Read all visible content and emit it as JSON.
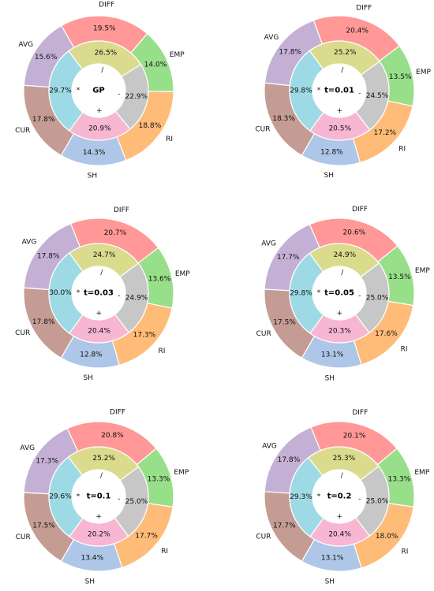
{
  "chart_data": [
    {
      "type": "pie",
      "center_label": "GP",
      "outer": {
        "categories": [
          "CUR",
          "AVG",
          "DIFF",
          "EMP",
          "RI",
          "SH"
        ],
        "values": [
          17.8,
          15.6,
          19.5,
          14.0,
          18.8,
          14.3
        ]
      },
      "inner": {
        "categories": [
          "*",
          "/",
          "-",
          "+"
        ],
        "values": [
          29.7,
          26.5,
          22.9,
          20.9
        ]
      }
    },
    {
      "type": "pie",
      "center_label": "t=0.01",
      "outer": {
        "categories": [
          "CUR",
          "AVG",
          "DIFF",
          "EMP",
          "RI",
          "SH"
        ],
        "values": [
          18.3,
          17.8,
          20.4,
          13.5,
          17.2,
          12.8
        ]
      },
      "inner": {
        "categories": [
          "*",
          "/",
          "-",
          "+"
        ],
        "values": [
          29.8,
          25.2,
          24.5,
          20.5
        ]
      }
    },
    {
      "type": "pie",
      "center_label": "t=0.03",
      "outer": {
        "categories": [
          "CUR",
          "AVG",
          "DIFF",
          "EMP",
          "RI",
          "SH"
        ],
        "values": [
          17.8,
          17.8,
          20.7,
          13.6,
          17.3,
          12.8
        ]
      },
      "inner": {
        "categories": [
          "*",
          "/",
          "-",
          "+"
        ],
        "values": [
          30.0,
          24.7,
          24.9,
          20.4
        ]
      }
    },
    {
      "type": "pie",
      "center_label": "t=0.05",
      "outer": {
        "categories": [
          "CUR",
          "AVG",
          "DIFF",
          "EMP",
          "RI",
          "SH"
        ],
        "values": [
          17.5,
          17.7,
          20.6,
          13.5,
          17.6,
          13.1
        ]
      },
      "inner": {
        "categories": [
          "*",
          "/",
          "-",
          "+"
        ],
        "values": [
          29.8,
          24.9,
          25.0,
          20.3
        ]
      }
    },
    {
      "type": "pie",
      "center_label": "t=0.1",
      "outer": {
        "categories": [
          "CUR",
          "AVG",
          "DIFF",
          "EMP",
          "RI",
          "SH"
        ],
        "values": [
          17.5,
          17.3,
          20.8,
          13.3,
          17.7,
          13.4
        ]
      },
      "inner": {
        "categories": [
          "*",
          "/",
          "-",
          "+"
        ],
        "values": [
          29.6,
          25.2,
          25.0,
          20.2
        ]
      }
    },
    {
      "type": "pie",
      "center_label": "t=0.2",
      "outer": {
        "categories": [
          "CUR",
          "AVG",
          "DIFF",
          "EMP",
          "RI",
          "SH"
        ],
        "values": [
          17.7,
          17.8,
          20.1,
          13.3,
          18.0,
          13.1
        ]
      },
      "inner": {
        "categories": [
          "*",
          "/",
          "-",
          "+"
        ],
        "values": [
          29.3,
          25.3,
          25.0,
          20.4
        ]
      }
    }
  ],
  "colors": {
    "outer": {
      "CUR": "#c49c94",
      "AVG": "#c5b0d5",
      "DIFF": "#ff9896",
      "EMP": "#98df8a",
      "RI": "#ffbb78",
      "SH": "#aec7e8"
    },
    "inner": {
      "*": "#9edae5",
      "/": "#dbdb8d",
      "-": "#c7c7c7",
      "+": "#f7b6d2"
    }
  }
}
